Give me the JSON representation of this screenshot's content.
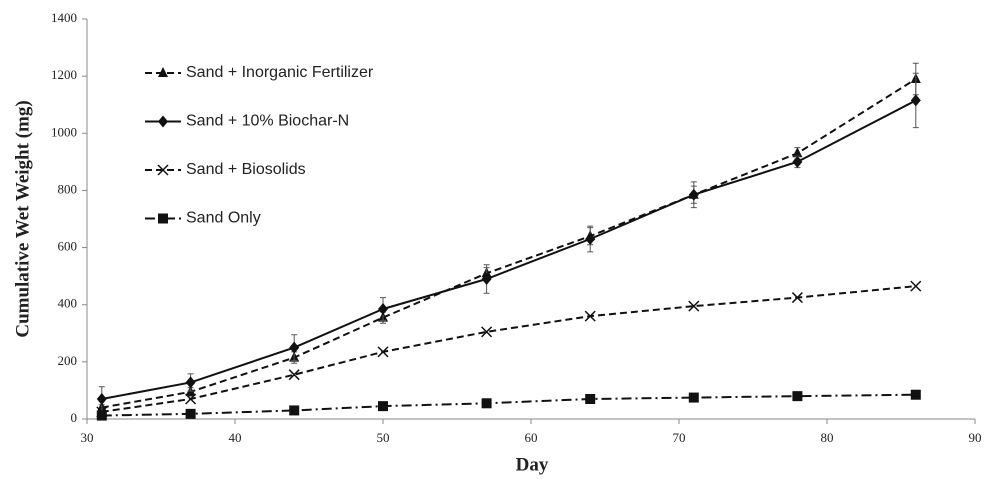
{
  "chart_data": {
    "type": "line",
    "x_label": "Day",
    "y_label": "Cumulative Wet Weight (mg)",
    "x": [
      31,
      37,
      44,
      50,
      57,
      64,
      71,
      78,
      86
    ],
    "xlim": [
      30,
      90
    ],
    "xticks": [
      30,
      40,
      50,
      60,
      70,
      80,
      90
    ],
    "ylim": [
      0,
      1400
    ],
    "yticks": [
      0,
      200,
      400,
      600,
      800,
      1000,
      1200,
      1400
    ],
    "grid": false,
    "legend": "upper left",
    "series": [
      {
        "name": "Sand + Inorganic Fertilizer",
        "color": "#111111",
        "marker": "triangle",
        "line_style": "dashed",
        "values": [
          40,
          95,
          215,
          355,
          510,
          640,
          785,
          930,
          1190
        ],
        "errors": [
          10,
          15,
          20,
          20,
          20,
          30,
          30,
          20,
          55
        ]
      },
      {
        "name": "Sand + 10% Biochar-N",
        "color": "#111111",
        "marker": "diamond",
        "line_style": "solid",
        "values": [
          70,
          128,
          250,
          385,
          490,
          630,
          785,
          900,
          1115
        ],
        "errors": [
          43,
          30,
          45,
          40,
          50,
          45,
          45,
          20,
          95
        ]
      },
      {
        "name": "Sand + Biosolids",
        "color": "#111111",
        "marker": "x",
        "line_style": "dashed",
        "values": [
          25,
          70,
          155,
          235,
          305,
          360,
          395,
          425,
          465
        ]
      },
      {
        "name": "Sand Only",
        "color": "#111111",
        "marker": "square",
        "line_style": "dashdot",
        "values": [
          12,
          18,
          30,
          45,
          55,
          70,
          75,
          80,
          85
        ]
      }
    ]
  }
}
